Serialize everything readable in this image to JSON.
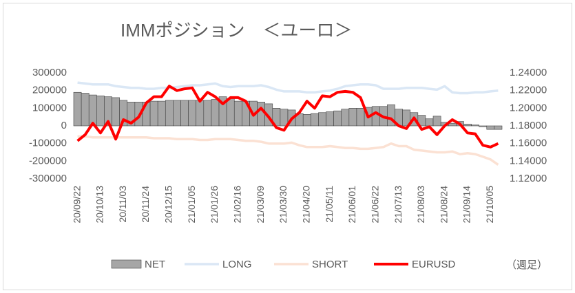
{
  "chart_data": {
    "type": "combo",
    "title": "IMMポジション　＜ユーロ＞",
    "note": "（週足）",
    "categories": [
      "20/09/22",
      null,
      null,
      "20/10/13",
      null,
      null,
      "20/11/03",
      null,
      null,
      "20/11/24",
      null,
      null,
      "20/12/15",
      null,
      null,
      "21/01/05",
      null,
      null,
      "21/01/26",
      null,
      null,
      "21/02/16",
      null,
      null,
      "21/03/09",
      null,
      null,
      "21/03/30",
      null,
      null,
      "21/04/20",
      null,
      null,
      "21/05/11",
      null,
      null,
      "21/06/01",
      null,
      null,
      "21/06/22",
      null,
      null,
      "21/07/13",
      null,
      null,
      "21/08/03",
      null,
      null,
      "21/08/24",
      null,
      null,
      "21/09/14",
      null,
      null,
      "21/10/05",
      null
    ],
    "series": [
      {
        "name": "NET",
        "color": "#a6a6a6",
        "kind": "bar",
        "values": [
          190000,
          185000,
          175000,
          170000,
          165000,
          160000,
          145000,
          135000,
          135000,
          135000,
          140000,
          140000,
          145000,
          145000,
          145000,
          145000,
          145000,
          145000,
          150000,
          165000,
          155000,
          140000,
          140000,
          140000,
          135000,
          125000,
          100000,
          95000,
          90000,
          70000,
          65000,
          70000,
          75000,
          80000,
          85000,
          95000,
          100000,
          100000,
          105000,
          110000,
          110000,
          120000,
          95000,
          90000,
          75000,
          60000,
          40000,
          55000,
          20000,
          15000,
          25000,
          10000,
          5000,
          -5000,
          -20000,
          -20000
        ]
      },
      {
        "name": "LONG",
        "color": "#dae7f5",
        "kind": "line",
        "values": [
          245000,
          240000,
          235000,
          235000,
          235000,
          225000,
          220000,
          215000,
          215000,
          210000,
          210000,
          215000,
          215000,
          220000,
          225000,
          230000,
          230000,
          235000,
          240000,
          225000,
          220000,
          225000,
          225000,
          225000,
          230000,
          220000,
          205000,
          195000,
          195000,
          195000,
          190000,
          190000,
          195000,
          200000,
          210000,
          225000,
          230000,
          235000,
          235000,
          230000,
          210000,
          210000,
          210000,
          215000,
          215000,
          215000,
          210000,
          205000,
          225000,
          190000,
          185000,
          185000,
          190000,
          190000,
          195000,
          200000
        ]
      },
      {
        "name": "SHORT",
        "color": "#fbe1d3",
        "kind": "line",
        "values": [
          -60000,
          -60000,
          -65000,
          -65000,
          -65000,
          -65000,
          -65000,
          -65000,
          -65000,
          -65000,
          -70000,
          -70000,
          -70000,
          -75000,
          -75000,
          -75000,
          -80000,
          -80000,
          -75000,
          -75000,
          -75000,
          -80000,
          -85000,
          -85000,
          -90000,
          -100000,
          -100000,
          -100000,
          -95000,
          -110000,
          -120000,
          -120000,
          -120000,
          -115000,
          -120000,
          -125000,
          -125000,
          -130000,
          -130000,
          -125000,
          -120000,
          -100000,
          -115000,
          -115000,
          -135000,
          -140000,
          -145000,
          -150000,
          -150000,
          -145000,
          -160000,
          -155000,
          -160000,
          -175000,
          -190000,
          -220000
        ]
      },
      {
        "name": "EURUSD",
        "color": "#ff0000",
        "kind": "line",
        "axis": "y2",
        "values": [
          1.163,
          1.17,
          1.183,
          1.172,
          1.185,
          1.165,
          1.187,
          1.183,
          1.19,
          1.206,
          1.213,
          1.213,
          1.225,
          1.22,
          1.222,
          1.223,
          1.208,
          1.218,
          1.213,
          1.205,
          1.212,
          1.212,
          1.208,
          1.192,
          1.2,
          1.19,
          1.178,
          1.175,
          1.188,
          1.195,
          1.208,
          1.2,
          1.214,
          1.213,
          1.218,
          1.219,
          1.218,
          1.212,
          1.19,
          1.195,
          1.19,
          1.188,
          1.18,
          1.177,
          1.189,
          1.176,
          1.179,
          1.17,
          1.18,
          1.187,
          1.182,
          1.172,
          1.171,
          1.158,
          1.156,
          1.16
        ]
      }
    ],
    "ylim": [
      -300000,
      300000
    ],
    "yticks": [
      300000,
      200000,
      100000,
      0,
      -100000,
      -200000,
      -300000
    ],
    "y2lim": [
      1.12,
      1.24
    ],
    "y2ticks": [
      {
        "value": 1.24,
        "label": "1.24000"
      },
      {
        "value": 1.22,
        "label": "1.22000"
      },
      {
        "value": 1.2,
        "label": "1.20000"
      },
      {
        "value": 1.18,
        "label": "1.18000"
      },
      {
        "value": 1.16,
        "label": "1.16000"
      },
      {
        "value": 1.14,
        "label": "1.14000"
      },
      {
        "value": 1.12,
        "label": "1.12000"
      }
    ],
    "legend": "bottom"
  }
}
